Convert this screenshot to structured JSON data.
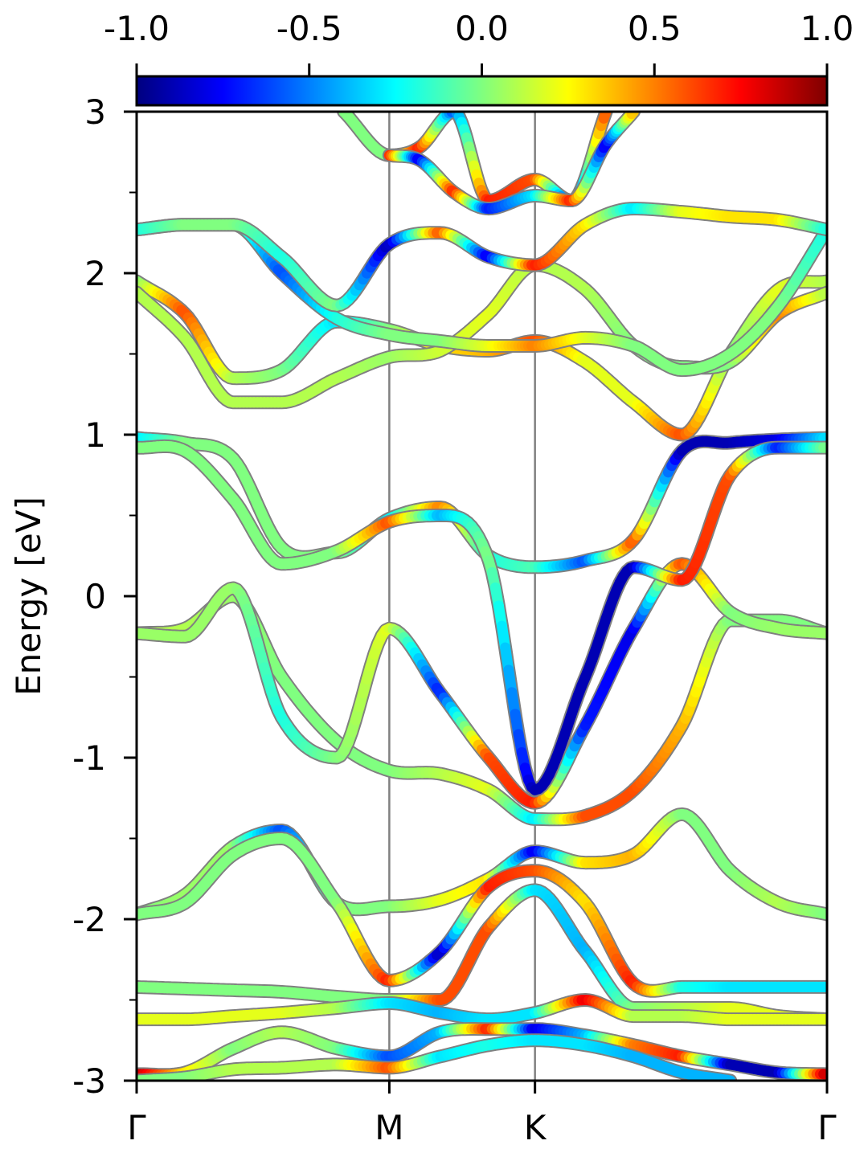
{
  "chart_data": {
    "type": "line",
    "ylabel": "Energy [eV]",
    "ylim": [
      -3,
      3
    ],
    "y_ticks": [
      "-3",
      "-2",
      "-1",
      "0",
      "1",
      "2",
      "3"
    ],
    "y_tick_values": [
      -3,
      -2,
      -1,
      0,
      1,
      2,
      3
    ],
    "k_path": {
      "labels": [
        "Γ",
        "M",
        "K",
        "Γ"
      ],
      "positions": [
        0,
        0.366,
        0.577,
        1.0
      ]
    },
    "colorbar": {
      "range": [
        -1.0,
        1.0
      ],
      "ticks": [
        "-1.0",
        "-0.5",
        "0.0",
        "0.5",
        "1.0"
      ],
      "tick_values": [
        -1.0,
        -0.5,
        0.0,
        0.5,
        1.0
      ],
      "colormap": "jet",
      "placement": "top"
    },
    "series": [
      {
        "x": [
          0,
          0.07,
          0.14,
          0.21,
          0.29,
          0.366,
          0.44,
          0.51,
          0.577,
          0.65,
          0.72,
          0.79,
          0.86,
          0.93,
          1.0
        ],
        "y": [
          -0.23,
          -0.2,
          0.0,
          -0.5,
          -0.9,
          -1.08,
          -1.1,
          -1.2,
          -1.38,
          -1.36,
          -1.2,
          -0.8,
          -0.15,
          -0.15,
          -0.23
        ],
        "c": [
          0.1,
          0.1,
          0.05,
          0.0,
          0.0,
          0.0,
          0.1,
          0.2,
          -0.3,
          0.6,
          0.6,
          0.4,
          0.0,
          0.0,
          0.0
        ]
      },
      {
        "x": [
          0,
          0.07,
          0.14,
          0.21,
          0.29,
          0.366,
          0.44,
          0.51,
          0.577,
          0.65,
          0.72,
          0.79,
          0.86,
          0.93,
          1.0
        ],
        "y": [
          -0.23,
          -0.25,
          0.05,
          -0.75,
          -1.0,
          -0.2,
          -0.6,
          -1.0,
          -1.28,
          -0.8,
          -0.2,
          0.2,
          -0.1,
          -0.2,
          -0.23
        ],
        "c": [
          0.05,
          0.05,
          0.05,
          -0.2,
          0.0,
          0.2,
          -0.7,
          0.6,
          0.7,
          -0.7,
          -0.8,
          0.6,
          0.0,
          0.05,
          0.05
        ]
      },
      {
        "x": [
          0,
          0.07,
          0.14,
          0.21,
          0.29,
          0.366,
          0.44,
          0.51,
          0.577,
          0.65,
          0.72,
          0.79,
          0.86,
          0.93,
          1.0
        ],
        "y": [
          0.98,
          0.95,
          0.85,
          0.3,
          0.27,
          0.48,
          0.55,
          0.25,
          0.18,
          0.22,
          0.35,
          0.9,
          0.95,
          0.97,
          0.98
        ],
        "c": [
          -0.3,
          0.0,
          0.0,
          0.0,
          0.0,
          -0.3,
          0.5,
          -0.2,
          -0.1,
          -0.6,
          0.6,
          -0.9,
          -0.9,
          -0.8,
          -0.3
        ]
      },
      {
        "x": [
          0,
          0.07,
          0.14,
          0.21,
          0.29,
          0.366,
          0.44,
          0.51,
          0.577,
          0.65,
          0.72,
          0.79,
          0.86,
          0.93,
          1.0
        ],
        "y": [
          0.92,
          0.9,
          0.6,
          0.2,
          0.28,
          0.46,
          0.5,
          0.22,
          -1.2,
          -0.5,
          0.18,
          0.1,
          0.75,
          0.92,
          0.92
        ],
        "c": [
          0.0,
          0.0,
          0.0,
          0.0,
          0.0,
          0.6,
          -0.4,
          0.0,
          -0.9,
          -0.9,
          -0.9,
          0.7,
          0.6,
          -0.7,
          0.0
        ]
      },
      {
        "x": [
          0,
          0.07,
          0.14,
          0.21,
          0.29,
          0.366,
          0.44,
          0.51,
          0.577,
          0.65,
          0.72,
          0.79,
          0.86,
          0.93,
          1.0
        ],
        "y": [
          1.95,
          1.75,
          1.35,
          1.4,
          1.7,
          1.65,
          1.55,
          1.52,
          1.58,
          1.45,
          1.2,
          1.0,
          1.5,
          1.9,
          1.95
        ],
        "c": [
          0.0,
          0.6,
          0.1,
          0.0,
          -0.3,
          0.0,
          0.3,
          0.4,
          0.6,
          0.2,
          0.2,
          0.6,
          0.0,
          0.2,
          0.1
        ]
      },
      {
        "x": [
          0,
          0.07,
          0.14,
          0.21,
          0.29,
          0.366,
          0.44,
          0.51,
          0.577,
          0.65,
          0.72,
          0.79,
          0.86,
          0.93,
          1.0
        ],
        "y": [
          1.88,
          1.6,
          1.2,
          1.2,
          1.35,
          1.48,
          1.52,
          1.75,
          2.05,
          1.9,
          1.55,
          1.42,
          1.45,
          1.75,
          1.88
        ],
        "c": [
          0.1,
          0.1,
          0.1,
          0.1,
          0.1,
          0.05,
          0.15,
          0.2,
          0.1,
          0.1,
          0.0,
          0.0,
          0.0,
          0.5,
          0.1
        ]
      },
      {
        "x": [
          0,
          0.07,
          0.14,
          0.21,
          0.29,
          0.366,
          0.44,
          0.51,
          0.577,
          0.65,
          0.72,
          0.79,
          0.86,
          0.93,
          1.0
        ],
        "y": [
          2.27,
          2.3,
          2.3,
          2.0,
          1.72,
          1.62,
          1.58,
          1.55,
          1.55,
          1.6,
          1.55,
          1.4,
          1.5,
          1.8,
          2.27
        ],
        "c": [
          -0.2,
          0.0,
          0.0,
          -0.6,
          -0.2,
          0.0,
          0.0,
          0.2,
          0.5,
          0.2,
          0.0,
          0.0,
          0.0,
          0.0,
          -0.2
        ]
      },
      {
        "x": [
          0,
          0.07,
          0.14,
          0.21,
          0.29,
          0.366,
          0.44,
          0.51,
          0.577,
          0.65,
          0.72,
          0.79,
          0.86,
          0.93,
          1.0
        ],
        "y": [
          2.27,
          2.3,
          2.3,
          2.1,
          1.8,
          2.18,
          2.25,
          2.1,
          2.05,
          2.3,
          2.4,
          2.38,
          2.35,
          2.33,
          2.27
        ],
        "c": [
          -0.2,
          0.0,
          0.0,
          -0.2,
          0.0,
          -0.9,
          0.6,
          -0.8,
          0.7,
          0.3,
          -0.3,
          0.2,
          0.3,
          0.3,
          -0.2
        ]
      },
      {
        "x": [
          0.3,
          0.366,
          0.41,
          0.46,
          0.51,
          0.577,
          0.63,
          0.68
        ],
        "y": [
          3.0,
          2.73,
          2.78,
          3.0,
          2.45,
          2.58,
          2.45,
          3.0
        ],
        "c": [
          0.0,
          0.0,
          0.7,
          -0.6,
          0.7,
          0.6,
          -0.8,
          0.6
        ]
      },
      {
        "x": [
          0.366,
          0.41,
          0.46,
          0.51,
          0.577,
          0.63,
          0.68,
          0.72
        ],
        "y": [
          2.73,
          2.7,
          2.5,
          2.4,
          2.48,
          2.45,
          2.8,
          3.0
        ],
        "c": [
          0.7,
          -0.8,
          0.7,
          -0.7,
          -0.3,
          0.7,
          -0.8,
          0.4
        ]
      },
      {
        "x": [
          0,
          0.07,
          0.14,
          0.21,
          0.29,
          0.366,
          0.44,
          0.51,
          0.577,
          0.65,
          0.72,
          0.79,
          0.86,
          0.93,
          1.0
        ],
        "y": [
          -1.97,
          -1.85,
          -1.55,
          -1.45,
          -1.9,
          -1.92,
          -1.88,
          -1.75,
          -1.58,
          -1.65,
          -1.6,
          -1.35,
          -1.7,
          -1.9,
          -1.97
        ],
        "c": [
          0.0,
          0.05,
          0.05,
          -0.6,
          0.0,
          0.0,
          0.2,
          0.3,
          -0.8,
          0.3,
          0.4,
          0.0,
          0.0,
          0.1,
          0.0
        ]
      },
      {
        "x": [
          0,
          0.07,
          0.14,
          0.21,
          0.29,
          0.366,
          0.44,
          0.51,
          0.577,
          0.65,
          0.72,
          0.79,
          0.86,
          0.93,
          1.0
        ],
        "y": [
          -1.97,
          -1.9,
          -1.6,
          -1.5,
          -1.9,
          -2.38,
          -2.2,
          -1.8,
          -1.7,
          -1.9,
          -2.4,
          -2.42,
          -2.42,
          -2.42,
          -2.42
        ],
        "c": [
          0.0,
          0.0,
          0.0,
          0.0,
          0.0,
          0.7,
          -0.9,
          0.7,
          0.6,
          0.3,
          0.7,
          -0.2,
          -0.3,
          -0.3,
          -0.3
        ]
      },
      {
        "x": [
          0,
          0.07,
          0.14,
          0.21,
          0.29,
          0.366,
          0.44,
          0.51,
          0.577,
          0.65,
          0.72,
          0.79,
          0.86,
          0.93,
          1.0
        ],
        "y": [
          -2.42,
          -2.43,
          -2.44,
          -2.45,
          -2.48,
          -2.5,
          -2.5,
          -2.05,
          -1.82,
          -2.2,
          -2.55,
          -2.55,
          -2.55,
          -2.6,
          -2.62
        ],
        "c": [
          0.0,
          0.0,
          0.0,
          0.0,
          0.0,
          0.0,
          0.6,
          0.6,
          -0.3,
          -0.4,
          0.0,
          0.1,
          0.2,
          0.2,
          0.2
        ]
      },
      {
        "x": [
          0,
          0.07,
          0.14,
          0.21,
          0.29,
          0.366,
          0.44,
          0.51,
          0.577,
          0.65,
          0.72,
          0.79,
          0.86,
          0.93,
          1.0
        ],
        "y": [
          -2.62,
          -2.62,
          -2.6,
          -2.58,
          -2.55,
          -2.52,
          -2.58,
          -2.62,
          -2.58,
          -2.5,
          -2.6,
          -2.6,
          -2.62,
          -2.62,
          -2.62
        ],
        "c": [
          0.2,
          0.2,
          0.2,
          0.2,
          0.1,
          -0.3,
          -0.4,
          -0.3,
          -0.3,
          0.8,
          0.1,
          0.1,
          0.2,
          0.2,
          0.2
        ]
      },
      {
        "x": [
          0,
          0.07,
          0.14,
          0.21,
          0.29,
          0.366,
          0.44,
          0.51,
          0.577,
          0.65,
          0.72,
          0.79,
          0.86,
          0.93,
          1.0
        ],
        "y": [
          -2.96,
          -2.95,
          -2.8,
          -2.7,
          -2.8,
          -2.85,
          -2.7,
          -2.68,
          -2.68,
          -2.72,
          -2.78,
          -2.85,
          -2.9,
          -2.95,
          -2.96
        ],
        "c": [
          0.9,
          0.3,
          0.0,
          0.1,
          0.0,
          -0.6,
          -0.4,
          0.7,
          -0.8,
          -0.4,
          0.5,
          0.7,
          -0.9,
          -0.9,
          0.9
        ]
      },
      {
        "x": [
          0.0,
          0.07,
          0.14,
          0.21,
          0.29,
          0.366,
          0.44,
          0.51,
          0.577,
          0.65,
          0.72,
          0.79,
          0.86
        ],
        "y": [
          -3.0,
          -2.98,
          -2.93,
          -2.92,
          -2.9,
          -2.92,
          -2.85,
          -2.78,
          -2.75,
          -2.78,
          -2.85,
          -2.95,
          -3.0
        ],
        "c": [
          0.0,
          0.0,
          0.1,
          0.1,
          0.1,
          0.6,
          -0.3,
          -0.2,
          -0.3,
          -0.3,
          -0.4,
          -0.4,
          -0.4
        ]
      }
    ]
  }
}
